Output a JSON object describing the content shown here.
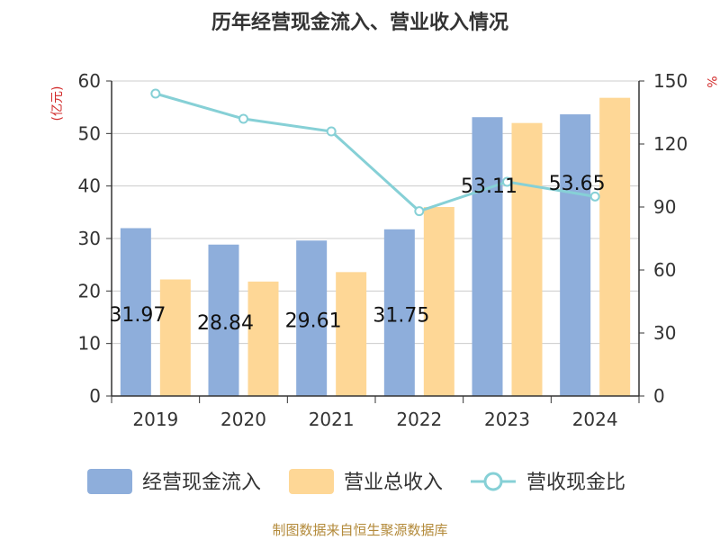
{
  "chart_data": {
    "type": "bar",
    "title": "历年经营现金流入、营业收入情况",
    "categories": [
      "2019",
      "2020",
      "2021",
      "2022",
      "2023",
      "2024"
    ],
    "y_left": {
      "label": "(亿元)",
      "ylim": [
        0,
        60
      ],
      "ticks": [
        0,
        10,
        20,
        30,
        40,
        50,
        60
      ]
    },
    "y_right": {
      "label": "%",
      "ylim": [
        0,
        150
      ],
      "ticks": [
        0,
        30,
        60,
        90,
        120,
        150
      ]
    },
    "series": [
      {
        "name": "经营现金流入",
        "type": "bar",
        "axis": "left",
        "color": "#8eaedb",
        "values": [
          31.97,
          28.84,
          29.61,
          31.75,
          53.11,
          53.65
        ]
      },
      {
        "name": "营业总收入",
        "type": "bar",
        "axis": "left",
        "color": "#fed796",
        "values": [
          22.2,
          21.8,
          23.6,
          36.0,
          52.0,
          56.8
        ]
      },
      {
        "name": "营收现金比",
        "type": "line",
        "axis": "right",
        "color": "#86d0d6",
        "values": [
          144,
          132,
          126,
          88,
          102,
          95
        ]
      }
    ],
    "data_labels": [
      "31.97",
      "28.84",
      "29.61",
      "31.75",
      "53.11",
      "53.65"
    ],
    "legend_position": "bottom",
    "grid": true
  },
  "source": "制图数据来自恒生聚源数据库"
}
